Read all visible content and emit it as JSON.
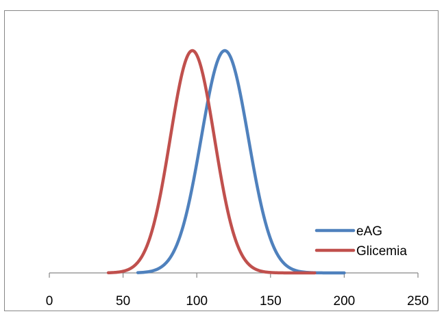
{
  "chart_data": {
    "type": "line",
    "title": "",
    "xlabel": "",
    "ylabel": "",
    "xlim": [
      0,
      250
    ],
    "ylim": [
      0,
      1
    ],
    "x_ticks": [
      0,
      50,
      100,
      150,
      200,
      250
    ],
    "x_tick_labels": [
      "0",
      "50",
      "100",
      "150",
      "200",
      "250"
    ],
    "grid": false,
    "legend_position": "bottom-right",
    "series": [
      {
        "name": "eAG",
        "color": "#4F81BD",
        "mean": 119,
        "sd": 16,
        "x_range": [
          60,
          200
        ]
      },
      {
        "name": "Glicemia",
        "color": "#C0504D",
        "mean": 97,
        "sd": 15,
        "x_range": [
          40,
          180
        ]
      }
    ]
  }
}
